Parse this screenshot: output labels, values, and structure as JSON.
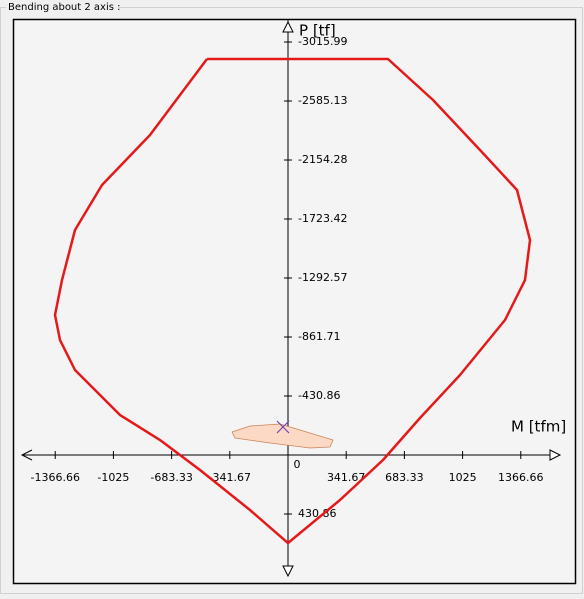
{
  "panel_title": "Bending about 2 axis :",
  "chart_data": {
    "type": "line",
    "x_label": "M [tfm]",
    "y_label": "P [tf]",
    "xlim": [
      -1561.7,
      1596.9
    ],
    "ylim": [
      854.4,
      -3176.8
    ],
    "xticks": [
      -1366.66,
      -1025,
      -683.33,
      -341.67,
      0,
      341.67,
      683.33,
      1025,
      1366.66
    ],
    "yticks": [
      -3015.99,
      -2585.13,
      -2154.28,
      -1723.42,
      -1292.57,
      -861.71,
      -430.86,
      430.86
    ],
    "series": [
      {
        "color": "#e41a1a",
        "x": [
          -475.6,
          587.1,
          851.3,
          1127.2,
          1344.5,
          1420.8,
          1391.4,
          1274.0,
          1009.8,
          774.9,
          557.7,
          305.3,
          0,
          -223.1,
          -516.6,
          -751.5,
          -986.3,
          -1250.5,
          -1338.6,
          -1367.9,
          -1326.8,
          -1250.5,
          -1092.0,
          -810.2,
          -475.6
        ],
        "values": [
          -2892,
          -2892,
          -2592.6,
          -2227.4,
          -1935.3,
          -1570.1,
          -1278.0,
          -985.9,
          -584.2,
          -270.2,
          36.5,
          328.6,
          642.7,
          401.7,
          109.5,
          -109.5,
          -292.1,
          -620.8,
          -839.8,
          -1022.4,
          -1278.0,
          -1643.2,
          -1971.8,
          -2337.0,
          -2892
        ]
      },
      {
        "color": "#fcd9c4",
        "fill": true,
        "x": [
          -328.8,
          -223.1,
          -46.9,
          70.5,
          264.2,
          246.6,
          129.2,
          -105.7,
          -311.2,
          -328.8
        ],
        "values": [
          -168.0,
          -211.8,
          -226.4,
          -182.6,
          -109.5,
          -58.4,
          -51.1,
          -87.6,
          -124.2,
          -168.0
        ]
      }
    ],
    "marker": {
      "x": -29.4,
      "y": -204.5,
      "color": "#7a3fb0"
    }
  }
}
